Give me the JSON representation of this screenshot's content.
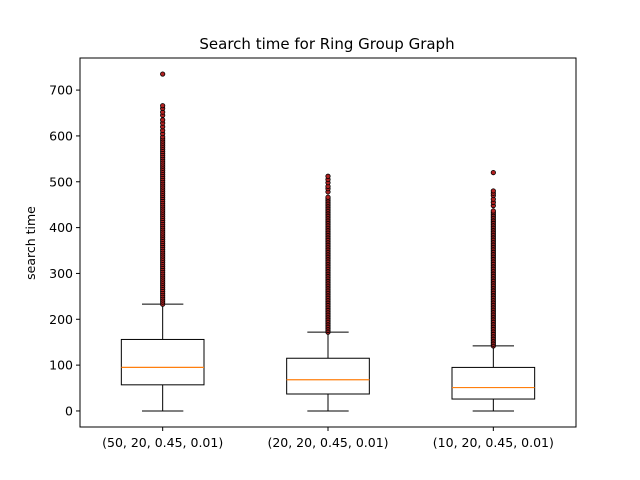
{
  "chart_data": {
    "type": "box",
    "title": "Search time for Ring Group Graph",
    "xlabel": "",
    "ylabel": "search time",
    "ylim": [
      -35,
      770
    ],
    "yticks": [
      0,
      100,
      200,
      300,
      400,
      500,
      600,
      700
    ],
    "categories": [
      "(50, 20, 0.45, 0.01)",
      "(20, 20, 0.45, 0.01)",
      "(10, 20, 0.45, 0.01)"
    ],
    "boxes": [
      {
        "label": "(50, 20, 0.45, 0.01)",
        "whisker_low": 0,
        "q1": 57,
        "median": 95,
        "q3": 156,
        "whisker_high": 233,
        "outlier_range": [
          233,
          598
        ],
        "outliers_sparse": [
          605,
          612,
          620,
          628,
          635,
          645,
          652,
          660,
          666,
          735
        ]
      },
      {
        "label": "(20, 20, 0.45, 0.01)",
        "whisker_low": 0,
        "q1": 37,
        "median": 68,
        "q3": 115,
        "whisker_high": 172,
        "outlier_range": [
          172,
          470
        ],
        "outliers_sparse": [
          478,
          485,
          490,
          498,
          505,
          512
        ]
      },
      {
        "label": "(10, 20, 0.45, 0.01)",
        "whisker_low": 0,
        "q1": 26,
        "median": 51,
        "q3": 95,
        "whisker_high": 142,
        "outlier_range": [
          142,
          440
        ],
        "outliers_sparse": [
          448,
          455,
          462,
          470,
          475,
          480,
          520
        ]
      }
    ],
    "colors": {
      "box": "#000000",
      "median": "#ff7f0e",
      "outlier_fill": "#b22222",
      "outlier_edge": "#000000"
    },
    "grid": false
  }
}
